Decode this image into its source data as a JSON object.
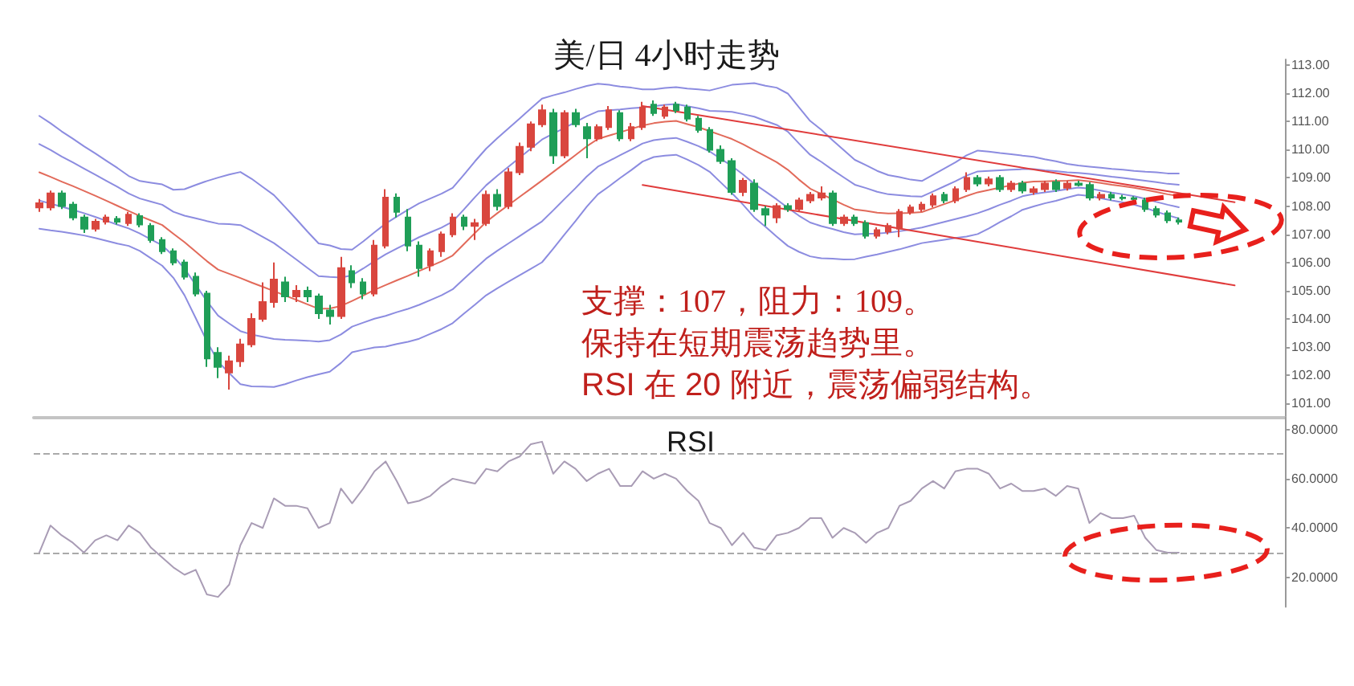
{
  "chart_data": [
    {
      "type": "candlestick",
      "title": "美/日 4小时走势",
      "categories": [
        null,
        null,
        null,
        null,
        null,
        null,
        null,
        null,
        null,
        null,
        null,
        null,
        null,
        null,
        null,
        null,
        null,
        null,
        null,
        null,
        null,
        null,
        null,
        null,
        null,
        null,
        null,
        null,
        null,
        null,
        null,
        null,
        null,
        null,
        null,
        null,
        null,
        null,
        null,
        null,
        null,
        null,
        null,
        null,
        null,
        null,
        null,
        null,
        null,
        null,
        null,
        null,
        null,
        null,
        null,
        null,
        null,
        null,
        null,
        null,
        null,
        null,
        null,
        null,
        null,
        null,
        null,
        null,
        null,
        null,
        null,
        null,
        null,
        null,
        null,
        null,
        null,
        null,
        null,
        null,
        null,
        null,
        null,
        null,
        null,
        null,
        null,
        null,
        null,
        null,
        null,
        null,
        null,
        null,
        null,
        null,
        null,
        null,
        null,
        null,
        null,
        null,
        null,
        null,
        null,
        null,
        null,
        null,
        null,
        null,
        null,
        null
      ],
      "ylim": [
        100.5,
        113.2
      ],
      "yticks": [
        {
          "value": 101,
          "label": "101.00"
        },
        {
          "value": 102,
          "label": "102.00"
        },
        {
          "value": 103,
          "label": "103.00"
        },
        {
          "value": 104,
          "label": "104.00"
        },
        {
          "value": 105,
          "label": "105.00"
        },
        {
          "value": 106,
          "label": "106.00"
        },
        {
          "value": 107,
          "label": "107.00"
        },
        {
          "value": 108,
          "label": "108.00"
        },
        {
          "value": 109,
          "label": "109.00"
        },
        {
          "value": 110,
          "label": "110.00"
        },
        {
          "value": 111,
          "label": "111.00"
        },
        {
          "value": 112,
          "label": "112.00"
        },
        {
          "value": 113,
          "label": "113.00"
        }
      ],
      "tick_labels": "y",
      "marker": "none",
      "annotations": [
        "支撑：107，阻力：109。",
        "保持在短期震荡趋势里。",
        "RSI 在 20 附近，震荡偏弱结构。"
      ],
      "series": [
        {
          "type": "candlestick",
          "ohlc": [
            [
              107.95,
              108.25,
              107.8,
              108.1
            ],
            [
              107.95,
              108.55,
              107.85,
              108.45
            ],
            [
              108.45,
              108.55,
              107.9,
              108.0
            ],
            [
              108.05,
              108.15,
              107.5,
              107.6
            ],
            [
              107.6,
              107.7,
              107.05,
              107.2
            ],
            [
              107.2,
              107.55,
              107.1,
              107.45
            ],
            [
              107.45,
              107.7,
              107.35,
              107.6
            ],
            [
              107.55,
              107.65,
              107.35,
              107.45
            ],
            [
              107.4,
              107.8,
              107.3,
              107.7
            ],
            [
              107.65,
              107.75,
              107.25,
              107.35
            ],
            [
              107.3,
              107.4,
              106.7,
              106.8
            ],
            [
              106.8,
              106.9,
              106.3,
              106.4
            ],
            [
              106.4,
              106.5,
              105.9,
              106.0
            ],
            [
              106.0,
              106.1,
              105.4,
              105.5
            ],
            [
              105.5,
              105.65,
              104.8,
              104.9
            ],
            [
              104.9,
              105.0,
              102.3,
              102.6
            ],
            [
              102.8,
              103.0,
              101.9,
              102.3
            ],
            [
              102.1,
              102.7,
              101.5,
              102.5
            ],
            [
              102.5,
              103.3,
              102.3,
              103.1
            ],
            [
              103.1,
              104.2,
              103.0,
              104.0
            ],
            [
              104.0,
              105.3,
              103.9,
              104.6
            ],
            [
              104.6,
              106.0,
              104.4,
              105.4
            ],
            [
              105.3,
              105.5,
              104.6,
              104.8
            ],
            [
              104.8,
              105.2,
              104.6,
              105.0
            ],
            [
              105.0,
              105.15,
              104.6,
              104.8
            ],
            [
              104.8,
              104.9,
              104.0,
              104.2
            ],
            [
              104.3,
              104.5,
              103.8,
              104.1
            ],
            [
              104.1,
              106.2,
              104.0,
              105.8
            ],
            [
              105.7,
              105.9,
              105.1,
              105.3
            ],
            [
              105.3,
              105.45,
              104.7,
              104.9
            ],
            [
              104.9,
              106.8,
              104.8,
              106.6
            ],
            [
              106.6,
              108.6,
              106.5,
              108.3
            ],
            [
              108.3,
              108.45,
              107.6,
              107.8
            ],
            [
              107.6,
              107.9,
              106.4,
              106.6
            ],
            [
              106.6,
              106.75,
              105.5,
              105.8
            ],
            [
              105.9,
              106.5,
              105.7,
              106.4
            ],
            [
              106.4,
              107.1,
              106.2,
              107.0
            ],
            [
              107.0,
              107.75,
              106.9,
              107.6
            ],
            [
              107.6,
              107.7,
              107.15,
              107.3
            ],
            [
              107.3,
              107.55,
              106.8,
              107.4
            ],
            [
              107.4,
              108.55,
              107.3,
              108.4
            ],
            [
              108.4,
              108.6,
              107.85,
              108.0
            ],
            [
              108.0,
              109.35,
              107.9,
              109.2
            ],
            [
              109.2,
              110.25,
              109.1,
              110.1
            ],
            [
              110.1,
              111.0,
              109.95,
              110.9
            ],
            [
              110.9,
              111.6,
              110.8,
              111.4
            ],
            [
              111.3,
              111.45,
              109.5,
              109.8
            ],
            [
              109.8,
              111.4,
              109.7,
              111.3
            ],
            [
              111.3,
              111.45,
              110.8,
              110.9
            ],
            [
              110.8,
              110.95,
              109.7,
              110.4
            ],
            [
              110.4,
              110.9,
              110.3,
              110.8
            ],
            [
              110.8,
              111.55,
              110.7,
              111.4
            ],
            [
              111.3,
              111.4,
              110.3,
              110.4
            ],
            [
              110.4,
              110.95,
              110.3,
              110.8
            ],
            [
              110.8,
              111.7,
              110.7,
              111.5
            ],
            [
              111.6,
              111.75,
              111.2,
              111.3
            ],
            [
              111.2,
              111.6,
              111.1,
              111.5
            ],
            [
              111.6,
              111.7,
              111.3,
              111.4
            ],
            [
              111.5,
              111.6,
              111.0,
              111.1
            ],
            [
              111.1,
              111.2,
              110.6,
              110.7
            ],
            [
              110.7,
              110.8,
              109.9,
              110.0
            ],
            [
              110.0,
              110.15,
              109.5,
              109.6
            ],
            [
              109.6,
              109.7,
              108.4,
              108.5
            ],
            [
              108.5,
              109.0,
              108.35,
              108.9
            ],
            [
              108.8,
              108.95,
              107.8,
              107.9
            ],
            [
              107.9,
              108.0,
              107.3,
              107.7
            ],
            [
              107.6,
              108.1,
              107.4,
              108.0
            ],
            [
              108.0,
              108.1,
              107.8,
              107.9
            ],
            [
              107.9,
              108.3,
              107.8,
              108.2
            ],
            [
              108.2,
              108.5,
              108.1,
              108.4
            ],
            [
              108.3,
              108.7,
              108.2,
              108.45
            ],
            [
              108.45,
              108.55,
              107.3,
              107.4
            ],
            [
              107.4,
              107.7,
              107.3,
              107.6
            ],
            [
              107.6,
              107.7,
              107.3,
              107.4
            ],
            [
              107.4,
              107.5,
              106.85,
              106.95
            ],
            [
              106.95,
              107.25,
              106.85,
              107.15
            ],
            [
              107.1,
              107.4,
              107.0,
              107.3
            ],
            [
              107.2,
              107.9,
              106.9,
              107.8
            ],
            [
              107.8,
              108.05,
              107.7,
              107.95
            ],
            [
              107.9,
              108.15,
              107.8,
              108.05
            ],
            [
              108.05,
              108.45,
              107.95,
              108.35
            ],
            [
              108.4,
              108.5,
              108.1,
              108.2
            ],
            [
              108.2,
              108.7,
              108.1,
              108.6
            ],
            [
              108.6,
              109.2,
              108.5,
              109.0
            ],
            [
              109.0,
              109.1,
              108.7,
              108.8
            ],
            [
              108.8,
              109.05,
              108.7,
              108.95
            ],
            [
              109.0,
              109.1,
              108.5,
              108.6
            ],
            [
              108.6,
              108.9,
              108.5,
              108.8
            ],
            [
              108.8,
              108.9,
              108.45,
              108.55
            ],
            [
              108.5,
              108.7,
              108.4,
              108.6
            ],
            [
              108.6,
              108.9,
              108.5,
              108.8
            ],
            [
              108.85,
              108.95,
              108.5,
              108.6
            ],
            [
              108.65,
              108.9,
              108.55,
              108.8
            ],
            [
              108.8,
              108.9,
              108.7,
              108.75
            ],
            [
              108.75,
              108.85,
              108.2,
              108.3
            ],
            [
              108.3,
              108.5,
              108.2,
              108.4
            ],
            [
              108.4,
              108.5,
              108.2,
              108.3
            ],
            [
              108.3,
              108.4,
              108.2,
              108.28
            ],
            [
              108.28,
              108.35,
              108.15,
              108.25
            ],
            [
              108.2,
              108.3,
              107.8,
              107.9
            ],
            [
              107.9,
              108.0,
              107.6,
              107.7
            ],
            [
              107.75,
              107.85,
              107.4,
              107.5
            ],
            [
              107.5,
              107.6,
              107.35,
              107.45
            ],
            null,
            null,
            null,
            null,
            null,
            null,
            null,
            null,
            null
          ],
          "colors": [
            "#d9463e",
            "#d9463e",
            "#1f9e57",
            "#1f9e57",
            "#1f9e57",
            "#d9463e",
            "#d9463e",
            "#1f9e57",
            "#d9463e",
            "#1f9e57",
            "#1f9e57",
            "#1f9e57",
            "#1f9e57",
            "#1f9e57",
            "#1f9e57",
            "#1f9e57",
            "#1f9e57",
            "#d9463e",
            "#d9463e",
            "#d9463e",
            "#d9463e",
            "#d9463e",
            "#1f9e57",
            "#d9463e",
            "#1f9e57",
            "#1f9e57",
            "#1f9e57",
            "#d9463e",
            "#1f9e57",
            "#1f9e57",
            "#d9463e",
            "#d9463e",
            "#1f9e57",
            "#1f9e57",
            "#1f9e57",
            "#d9463e",
            "#d9463e",
            "#d9463e",
            "#1f9e57",
            "#d9463e",
            "#d9463e",
            "#1f9e57",
            "#d9463e",
            "#d9463e",
            "#d9463e",
            "#d9463e",
            "#1f9e57",
            "#d9463e",
            "#1f9e57",
            "#1f9e57",
            "#d9463e",
            "#d9463e",
            "#1f9e57",
            "#d9463e",
            "#d9463e",
            "#1f9e57",
            "#d9463e",
            "#1f9e57",
            "#1f9e57",
            "#1f9e57",
            "#1f9e57",
            "#1f9e57",
            "#1f9e57",
            "#d9463e",
            "#1f9e57",
            "#1f9e57",
            "#d9463e",
            "#1f9e57",
            "#d9463e",
            "#d9463e",
            "#d9463e",
            "#1f9e57",
            "#d9463e",
            "#1f9e57",
            "#1f9e57",
            "#d9463e",
            "#d9463e",
            "#d9463e",
            "#d9463e",
            "#d9463e",
            "#d9463e",
            "#1f9e57",
            "#d9463e",
            "#d9463e",
            "#1f9e57",
            "#d9463e",
            "#1f9e57",
            "#d9463e",
            "#1f9e57",
            "#d9463e",
            "#d9463e",
            "#1f9e57",
            "#d9463e",
            "#1f9e57",
            "#1f9e57",
            "#d9463e",
            "#1f9e57",
            "#1f9e57",
            "#1f9e57",
            "#1f9e57",
            "#1f9e57",
            "#1f9e57",
            "#1f9e57",
            null,
            null,
            null,
            null,
            null,
            null,
            null,
            null,
            null
          ]
        },
        {
          "type": "line",
          "color": "#8c8ce0",
          "values": [
            111.2,
            110.94,
            110.65,
            110.39,
            110.12,
            109.87,
            109.61,
            109.35,
            109.07,
            108.89,
            108.83,
            108.77,
            108.58,
            108.6,
            108.75,
            108.89,
            109.01,
            109.12,
            109.21,
            108.97,
            108.68,
            108.39,
            107.97,
            107.54,
            107.1,
            106.68,
            106.61,
            106.48,
            106.46,
            106.75,
            107.07,
            107.38,
            107.63,
            107.87,
            108.1,
            108.27,
            108.44,
            108.65,
            109.11,
            109.59,
            110.04,
            110.41,
            110.76,
            111.11,
            111.46,
            111.81,
            111.93,
            112.03,
            112.15,
            112.26,
            112.34,
            112.3,
            112.24,
            112.2,
            112.14,
            112.14,
            112.19,
            112.22,
            112.17,
            112.14,
            112.1,
            112.2,
            112.3,
            112.33,
            112.36,
            112.27,
            112.2,
            111.99,
            111.5,
            111.02,
            110.71,
            110.34,
            109.99,
            109.64,
            109.45,
            109.25,
            109.1,
            109.03,
            108.94,
            108.89,
            109.11,
            109.33,
            109.55,
            109.8,
            109.97,
            109.93,
            109.88,
            109.84,
            109.79,
            109.75,
            109.66,
            109.59,
            109.5,
            109.44,
            109.4,
            109.36,
            109.32,
            109.29,
            109.25,
            109.22,
            109.2,
            109.16,
            109.16,
            null,
            null,
            null,
            null,
            null,
            null,
            null,
            null,
            null
          ]
        },
        {
          "type": "line",
          "color": "#8c8ce0",
          "values": [
            110.2,
            109.99,
            109.76,
            109.55,
            109.33,
            109.12,
            108.9,
            108.68,
            108.45,
            108.27,
            108.16,
            108.05,
            107.8,
            107.66,
            107.57,
            107.47,
            107.38,
            107.36,
            107.33,
            107.13,
            106.91,
            106.69,
            106.4,
            106.11,
            105.81,
            105.52,
            105.49,
            105.47,
            105.55,
            105.79,
            106.05,
            106.29,
            106.5,
            106.7,
            106.9,
            107.07,
            107.24,
            107.45,
            107.88,
            108.32,
            108.74,
            109.08,
            109.4,
            109.72,
            110.04,
            110.36,
            110.57,
            110.77,
            110.98,
            111.19,
            111.36,
            111.4,
            111.43,
            111.47,
            111.5,
            111.54,
            111.59,
            111.62,
            111.54,
            111.47,
            111.38,
            111.36,
            111.34,
            111.26,
            111.17,
            111.02,
            110.88,
            110.64,
            110.22,
            109.82,
            109.57,
            109.29,
            109.02,
            108.76,
            108.64,
            108.51,
            108.42,
            108.39,
            108.35,
            108.34,
            108.52,
            108.7,
            108.88,
            109.08,
            109.23,
            109.25,
            109.27,
            109.29,
            109.31,
            109.31,
            109.27,
            109.24,
            109.2,
            109.18,
            109.14,
            109.09,
            109.04,
            109.0,
            108.95,
            108.9,
            108.85,
            108.79,
            108.76,
            null,
            null,
            null,
            null,
            null,
            null,
            null,
            null,
            null
          ]
        },
        {
          "type": "line",
          "color": "#e26a5a",
          "values": [
            109.2,
            109.04,
            108.87,
            108.71,
            108.54,
            108.37,
            108.19,
            108.01,
            107.83,
            107.65,
            107.49,
            107.33,
            107.02,
            106.72,
            106.39,
            106.05,
            105.75,
            105.6,
            105.45,
            105.29,
            105.14,
            104.99,
            104.83,
            104.68,
            104.52,
            104.36,
            104.37,
            104.46,
            104.64,
            104.83,
            105.03,
            105.2,
            105.37,
            105.53,
            105.7,
            105.87,
            106.04,
            106.25,
            106.65,
            107.05,
            107.44,
            107.75,
            108.04,
            108.33,
            108.62,
            108.91,
            109.21,
            109.51,
            109.81,
            110.12,
            110.38,
            110.5,
            110.62,
            110.74,
            110.86,
            110.94,
            110.99,
            111.02,
            110.91,
            110.8,
            110.66,
            110.52,
            110.38,
            110.19,
            109.98,
            109.77,
            109.56,
            109.29,
            108.94,
            108.62,
            108.43,
            108.24,
            108.05,
            107.88,
            107.83,
            107.77,
            107.74,
            107.75,
            107.76,
            107.79,
            107.93,
            108.07,
            108.21,
            108.36,
            108.49,
            108.57,
            108.66,
            108.74,
            108.83,
            108.87,
            108.88,
            108.89,
            108.9,
            108.92,
            108.88,
            108.82,
            108.76,
            108.71,
            108.65,
            108.58,
            108.5,
            108.42,
            108.36,
            null,
            null,
            null,
            null,
            null,
            null,
            null,
            null,
            null
          ]
        },
        {
          "type": "line",
          "color": "#8c8ce0",
          "values": [
            108.2,
            108.09,
            107.98,
            107.87,
            107.75,
            107.62,
            107.48,
            107.34,
            107.21,
            107.03,
            106.82,
            106.61,
            106.24,
            105.78,
            105.21,
            104.63,
            104.12,
            103.84,
            103.57,
            103.45,
            103.37,
            103.29,
            103.26,
            103.25,
            103.23,
            103.2,
            103.25,
            103.45,
            103.73,
            103.87,
            104.01,
            104.11,
            104.24,
            104.36,
            104.5,
            104.67,
            104.84,
            105.05,
            105.42,
            105.78,
            106.14,
            106.42,
            106.68,
            106.94,
            107.2,
            107.46,
            107.85,
            108.25,
            108.64,
            109.05,
            109.4,
            109.6,
            109.81,
            110.01,
            110.22,
            110.34,
            110.39,
            110.42,
            110.28,
            110.13,
            109.94,
            109.68,
            109.42,
            109.12,
            108.79,
            108.52,
            108.24,
            107.94,
            107.66,
            107.42,
            107.29,
            107.19,
            107.08,
            107.0,
            107.02,
            107.03,
            107.06,
            107.11,
            107.17,
            107.24,
            107.34,
            107.44,
            107.54,
            107.64,
            107.75,
            107.89,
            108.05,
            108.19,
            108.35,
            108.43,
            108.49,
            108.54,
            108.6,
            108.66,
            108.62,
            108.55,
            108.48,
            108.42,
            108.35,
            108.26,
            108.15,
            108.05,
            107.96,
            null,
            null,
            null,
            null,
            null,
            null,
            null,
            null,
            null
          ]
        },
        {
          "type": "line",
          "color": "#8c8ce0",
          "values": [
            107.2,
            107.14,
            107.09,
            107.03,
            106.96,
            106.87,
            106.77,
            106.67,
            106.59,
            106.41,
            106.15,
            105.89,
            105.46,
            104.84,
            104.03,
            103.21,
            102.49,
            102.08,
            101.69,
            101.61,
            101.6,
            101.59,
            101.69,
            101.82,
            101.94,
            102.04,
            102.13,
            102.44,
            102.82,
            102.91,
            102.99,
            103.02,
            103.11,
            103.19,
            103.3,
            103.47,
            103.64,
            103.85,
            104.19,
            104.51,
            104.84,
            105.09,
            105.32,
            105.55,
            105.78,
            106.01,
            106.49,
            106.99,
            107.47,
            107.98,
            108.42,
            108.7,
            109.0,
            109.28,
            109.58,
            109.74,
            109.79,
            109.82,
            109.65,
            109.46,
            109.22,
            108.84,
            108.46,
            108.05,
            107.6,
            107.27,
            106.92,
            106.59,
            106.38,
            106.22,
            106.15,
            106.14,
            106.11,
            106.12,
            106.21,
            106.29,
            106.38,
            106.47,
            106.58,
            106.69,
            106.75,
            106.81,
            106.87,
            106.92,
            107.01,
            107.21,
            107.44,
            107.64,
            107.87,
            107.99,
            108.1,
            108.19,
            108.3,
            108.4,
            108.36,
            108.28,
            108.2,
            108.13,
            108.05,
            107.94,
            107.8,
            107.68,
            107.56,
            null,
            null,
            null,
            null,
            null,
            null,
            null,
            null,
            null
          ]
        },
        {
          "type": "line",
          "color": "#e03c3c",
          "values": [
            null,
            null,
            null,
            null,
            null,
            null,
            null,
            null,
            null,
            null,
            null,
            null,
            null,
            null,
            null,
            null,
            null,
            null,
            null,
            null,
            null,
            null,
            null,
            null,
            null,
            null,
            null,
            null,
            null,
            null,
            null,
            null,
            null,
            null,
            null,
            null,
            null,
            null,
            null,
            null,
            null,
            null,
            null,
            null,
            null,
            null,
            null,
            null,
            null,
            null,
            null,
            null,
            null,
            null,
            111.55,
            null,
            null,
            null,
            null,
            null,
            null,
            null,
            null,
            null,
            null,
            null,
            null,
            null,
            null,
            null,
            null,
            null,
            null,
            null,
            null,
            null,
            null,
            null,
            null,
            null,
            null,
            null,
            null,
            null,
            null,
            null,
            null,
            null,
            null,
            null,
            null,
            null,
            null,
            null,
            null,
            null,
            null,
            null,
            null,
            null,
            null,
            null,
            null,
            null,
            null,
            null,
            null,
            108.14,
            null,
            null,
            null,
            null
          ]
        },
        {
          "type": "line",
          "color": "#e03c3c",
          "values": [
            null,
            null,
            null,
            null,
            null,
            null,
            null,
            null,
            null,
            null,
            null,
            null,
            null,
            null,
            null,
            null,
            null,
            null,
            null,
            null,
            null,
            null,
            null,
            null,
            null,
            null,
            null,
            null,
            null,
            null,
            null,
            null,
            null,
            null,
            null,
            null,
            null,
            null,
            null,
            null,
            null,
            null,
            null,
            null,
            null,
            null,
            null,
            null,
            null,
            null,
            null,
            null,
            null,
            null,
            108.75,
            null,
            null,
            null,
            null,
            null,
            null,
            null,
            null,
            null,
            null,
            null,
            null,
            null,
            null,
            null,
            null,
            null,
            null,
            null,
            null,
            null,
            null,
            null,
            null,
            null,
            null,
            null,
            null,
            null,
            null,
            null,
            null,
            null,
            null,
            null,
            null,
            null,
            null,
            null,
            null,
            null,
            null,
            null,
            null,
            null,
            null,
            null,
            null,
            null,
            null,
            null,
            null,
            105.19,
            null,
            null,
            null,
            null
          ]
        }
      ]
    },
    {
      "type": "line",
      "title": "RSI",
      "categories": [
        null,
        null,
        null,
        null,
        null,
        null,
        null,
        null,
        null,
        null,
        null,
        null,
        null,
        null,
        null,
        null,
        null,
        null,
        null,
        null,
        null,
        null,
        null,
        null,
        null,
        null,
        null,
        null,
        null,
        null,
        null,
        null,
        null,
        null,
        null,
        null,
        null,
        null,
        null,
        null,
        null,
        null,
        null,
        null,
        null,
        null,
        null,
        null,
        null,
        null,
        null,
        null,
        null,
        null,
        null,
        null,
        null,
        null,
        null,
        null,
        null,
        null,
        null,
        null,
        null,
        null,
        null,
        null,
        null,
        null,
        null,
        null,
        null,
        null,
        null,
        null,
        null,
        null,
        null,
        null,
        null,
        null,
        null,
        null,
        null,
        null,
        null,
        null,
        null,
        null,
        null,
        null,
        null,
        null,
        null,
        null,
        null,
        null,
        null,
        null,
        null,
        null,
        null,
        null,
        null,
        null,
        null,
        null,
        null,
        null,
        null,
        null
      ],
      "values": [
        30,
        41,
        37,
        34,
        30,
        35,
        37,
        35,
        41,
        38,
        32,
        28,
        24,
        21,
        23,
        13,
        12,
        17,
        33,
        42,
        40,
        52,
        49,
        49,
        48,
        40,
        42,
        56,
        50,
        56,
        63,
        67,
        59,
        50,
        51,
        53,
        57,
        60,
        59,
        58,
        64,
        63,
        67,
        69,
        74,
        75,
        62,
        67,
        64,
        59,
        62,
        64,
        57,
        57,
        63,
        60,
        62,
        60,
        55,
        51,
        42,
        40,
        33,
        38,
        32,
        31,
        37,
        38,
        40,
        44,
        44,
        36,
        40,
        38,
        34,
        38,
        40,
        49,
        51,
        56,
        59,
        56,
        63,
        64,
        64,
        62,
        56,
        58,
        55,
        55,
        56,
        53,
        57,
        56,
        42,
        46,
        44,
        44,
        45,
        36,
        31,
        30,
        30,
        null,
        null,
        null,
        null,
        null,
        null,
        null,
        null,
        null
      ],
      "color": "#a99cb5",
      "ylim": [
        8,
        85
      ],
      "yticks": [
        {
          "value": 20,
          "label": "20.0000"
        },
        {
          "value": 40,
          "label": "40.0000"
        },
        {
          "value": 60,
          "label": "60.0000"
        },
        {
          "value": 80,
          "label": "80.0000"
        }
      ],
      "ref_lines": [
        {
          "axis": "y",
          "value": 70,
          "color": "#aaaaaa",
          "line_style": "dashed"
        },
        {
          "axis": "y",
          "value": 30,
          "color": "#aaaaaa",
          "line_style": "dashed"
        }
      ],
      "tick_labels": "y",
      "marker": "none"
    }
  ]
}
